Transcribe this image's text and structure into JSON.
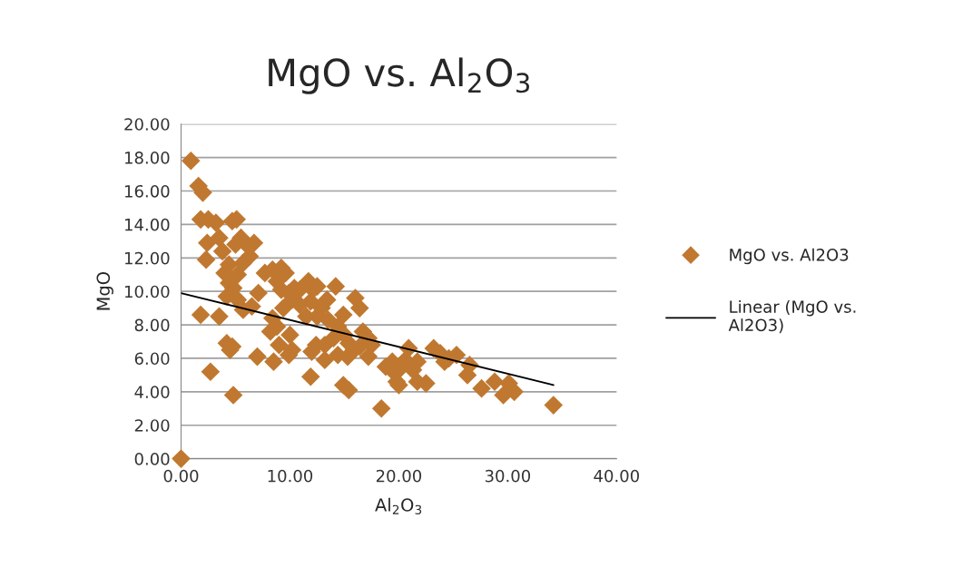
{
  "chart_data": {
    "type": "scatter",
    "title": "MgO vs. Al$_{2}$O$_{3}$",
    "xlabel": "Al$_{2}$O$_{3}$",
    "ylabel": "MgO",
    "xlim": [
      0,
      40
    ],
    "ylim": [
      0,
      20
    ],
    "xticks": [
      {
        "value": 0,
        "label": "0.00"
      },
      {
        "value": 10,
        "label": "10.00"
      },
      {
        "value": 20,
        "label": "20.00"
      },
      {
        "value": 30,
        "label": "30.00"
      },
      {
        "value": 40,
        "label": "40.00"
      }
    ],
    "yticks": [
      {
        "value": 0,
        "label": "0.00"
      },
      {
        "value": 2,
        "label": "2.00"
      },
      {
        "value": 4,
        "label": "4.00"
      },
      {
        "value": 6,
        "label": "6.00"
      },
      {
        "value": 8,
        "label": "8.00"
      },
      {
        "value": 10,
        "label": "10.00"
      },
      {
        "value": 12,
        "label": "12.00"
      },
      {
        "value": 14,
        "label": "14.00"
      },
      {
        "value": 16,
        "label": "16.00"
      },
      {
        "value": 18,
        "label": "18.00"
      },
      {
        "value": 20,
        "label": "20.00"
      }
    ],
    "grid": "y",
    "legend": "right",
    "marker": "diamond",
    "series": [
      {
        "name": "MgO vs. Al2O3",
        "color": "#c07830",
        "x": [
          0.9,
          1.6,
          2.0,
          1.8,
          2.5,
          3.2,
          4.7,
          5.1,
          2.4,
          2.3,
          3.5,
          3.8,
          4.4,
          4.0,
          5.0,
          5.5,
          6.0,
          6.7,
          6.3,
          5.7,
          5.2,
          4.4,
          4.8,
          4.2,
          5.2,
          5.7,
          6.5,
          7.1,
          7.7,
          8.4,
          9.2,
          9.6,
          8.8,
          9.2,
          9.9,
          10.4,
          10.9,
          10.2,
          10.9,
          9.4,
          8.4,
          8.8,
          8.2,
          10.0,
          9.0,
          10.2,
          9.9,
          8.5,
          7.0,
          4.7,
          4.2,
          4.5,
          1.8,
          3.5,
          2.7,
          4.8,
          0,
          11.7,
          12.1,
          12.5,
          11.9,
          11.5,
          12.5,
          12.9,
          13.4,
          14.2,
          13.5,
          14.4,
          14.9,
          14.0,
          13.2,
          12.4,
          12.0,
          11.9,
          13.2,
          14.4,
          15.0,
          15.4,
          15.9,
          15.3,
          14.9,
          15.4,
          16.0,
          16.4,
          16.7,
          17.2,
          17.2,
          17.5,
          16.4,
          18.4,
          18.8,
          19.4,
          19.5,
          19.8,
          20.0,
          20.6,
          20.9,
          21.3,
          21.7,
          20.0,
          21.7,
          22.5,
          23.2,
          23.8,
          24.2,
          24.6,
          25.3,
          26.3,
          26.5,
          27.6,
          28.8,
          29.6,
          30.1,
          30.6,
          34.2
        ],
        "values": [
          17.8,
          16.3,
          15.9,
          14.3,
          14.3,
          14.1,
          14.2,
          14.3,
          12.9,
          11.9,
          13.2,
          12.4,
          11.6,
          11.1,
          12.8,
          13.2,
          12.8,
          12.9,
          12.1,
          11.7,
          11.0,
          10.5,
          10.2,
          9.7,
          9.5,
          8.9,
          9.1,
          9.9,
          11.1,
          11.3,
          11.4,
          11.1,
          10.6,
          10.1,
          9.9,
          10.2,
          10.1,
          9.5,
          9.2,
          9.0,
          8.4,
          7.9,
          7.6,
          7.4,
          6.8,
          6.5,
          6.2,
          5.8,
          6.1,
          6.7,
          6.9,
          6.5,
          8.6,
          8.5,
          5.2,
          3.8,
          0,
          10.6,
          10.1,
          10.3,
          9.4,
          8.5,
          8.5,
          9.0,
          9.5,
          10.3,
          8.3,
          7.9,
          8.6,
          7.2,
          6.8,
          6.8,
          6.4,
          4.9,
          5.9,
          6.2,
          7.4,
          6.9,
          6.5,
          6.1,
          4.4,
          4.1,
          9.6,
          9.0,
          7.6,
          7.2,
          6.1,
          6.8,
          6.7,
          3.0,
          5.5,
          5.8,
          5.2,
          4.6,
          5.3,
          5.9,
          6.6,
          5.3,
          5.8,
          4.4,
          4.6,
          4.5,
          6.6,
          6.3,
          5.8,
          6.0,
          6.2,
          5.0,
          5.6,
          4.2,
          4.6,
          3.8,
          4.5,
          4.0,
          3.2
        ]
      },
      {
        "name": "Linear (MgO vs. Al2O3)",
        "type": "line",
        "color": "#000000",
        "marker": "none",
        "line_style": "solid",
        "x": [
          0,
          34.2
        ],
        "values": [
          9.9,
          4.4
        ]
      }
    ]
  }
}
